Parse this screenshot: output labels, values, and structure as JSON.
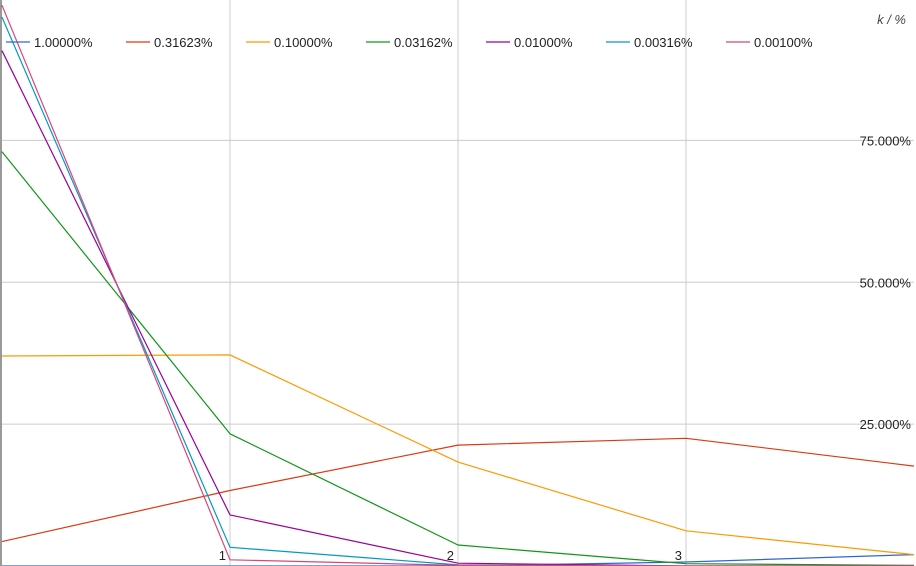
{
  "chart_data": {
    "type": "line",
    "title": "",
    "xlabel": "",
    "ylabel": "k / %",
    "x": [
      0,
      1,
      2,
      3,
      4
    ],
    "x_tick_labels": [
      "1",
      "2",
      "3"
    ],
    "xlim": [
      0,
      4
    ],
    "ylim": [
      0,
      100
    ],
    "y_ticks": [
      25,
      50,
      75
    ],
    "y_tick_labels": [
      "25.000%",
      "50.000%",
      "75.000%"
    ],
    "grid": true,
    "legend": "top-left",
    "series": [
      {
        "name": "1.00000%",
        "color": "#3366cc",
        "values": [
          0.0,
          0.0,
          0.0,
          0.7,
          2.0
        ]
      },
      {
        "name": "0.31623%",
        "color": "#dc3912",
        "values": [
          4.3,
          13.3,
          21.3,
          22.5,
          17.6
        ]
      },
      {
        "name": "0.10000%",
        "color": "#ff9900",
        "values": [
          37.0,
          37.2,
          18.3,
          6.2,
          2.0
        ]
      },
      {
        "name": "0.03162%",
        "color": "#109618",
        "values": [
          73.0,
          23.3,
          3.7,
          0.4,
          0.1
        ]
      },
      {
        "name": "0.01000%",
        "color": "#990099",
        "values": [
          90.8,
          9.0,
          0.5,
          0.0,
          0.0
        ]
      },
      {
        "name": "0.00316%",
        "color": "#0099c6",
        "values": [
          96.7,
          3.3,
          0.2,
          0.0,
          0.0
        ]
      },
      {
        "name": "0.00100%",
        "color": "#dd4477",
        "values": [
          98.8,
          1.1,
          0.1,
          0.0,
          0.0
        ]
      }
    ]
  }
}
